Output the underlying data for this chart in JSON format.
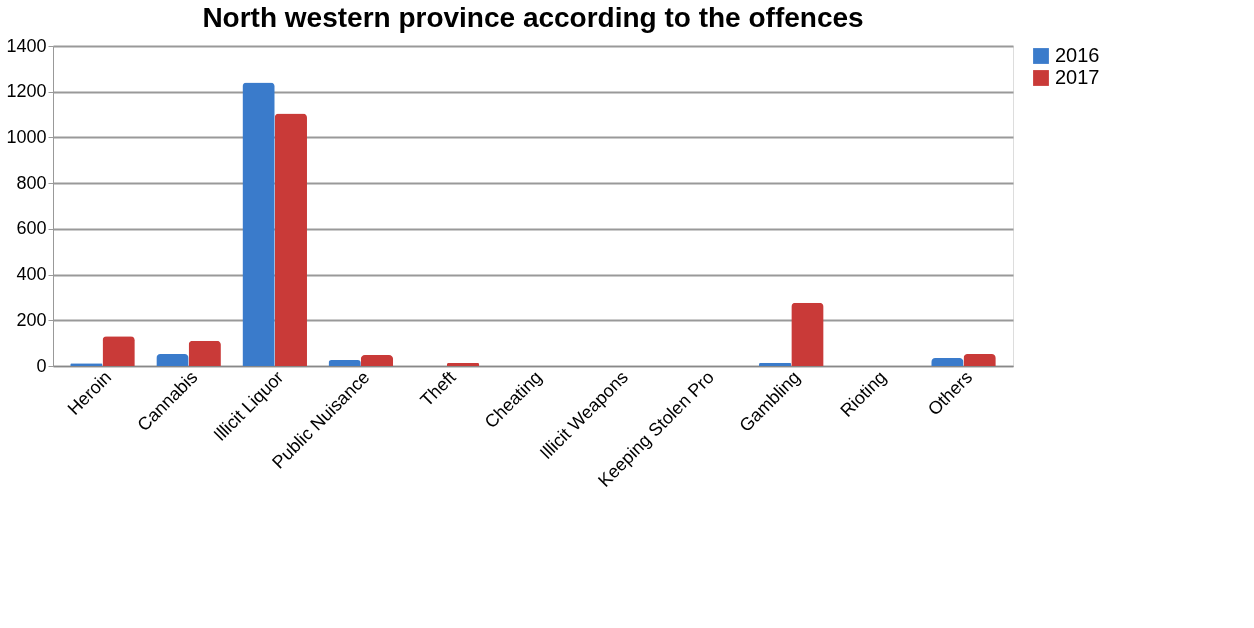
{
  "chart_data": {
    "type": "bar",
    "title": "North western province according to the offences",
    "categories": [
      "Heroin",
      "Cannabis",
      "Illicit Liquor",
      "Public Nuisance",
      "Theft",
      "Cheating",
      "Illicit Weapons",
      "Keeping Stolen Pro",
      "Gambling",
      "Rioting",
      "Others"
    ],
    "series": [
      {
        "name": "2016",
        "color": "#3a7bcb",
        "values": [
          12,
          52,
          1240,
          26,
          0,
          0,
          0,
          0,
          14,
          0,
          35
        ]
      },
      {
        "name": "2017",
        "color": "#c93a38",
        "values": [
          130,
          110,
          1105,
          48,
          13,
          0,
          0,
          0,
          277,
          0,
          52
        ]
      }
    ],
    "ylim": [
      0,
      1400
    ],
    "yticks": [
      0,
      200,
      400,
      600,
      800,
      1000,
      1200,
      1400
    ],
    "grid": "y",
    "legend": "right"
  }
}
